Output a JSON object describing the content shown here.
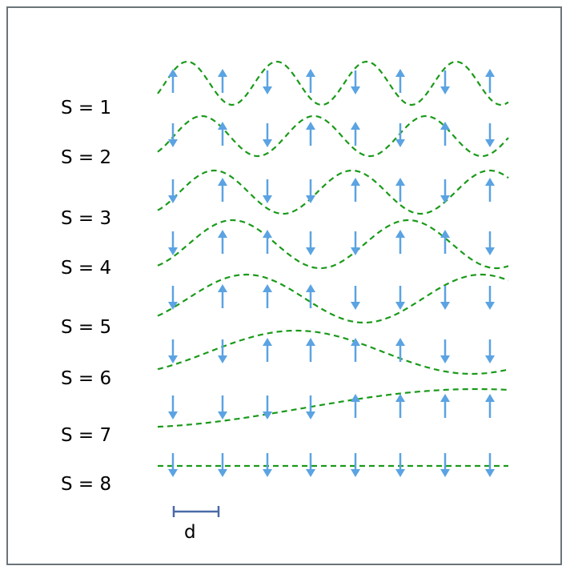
{
  "diagram": {
    "spacing_label": "d",
    "colors": {
      "wave": "#1a9a1a",
      "arrow": "#5ba3e2",
      "scale_bar": "#4a6aa8",
      "frame": "#6b7378"
    },
    "rows": [
      {
        "label": "S = 1",
        "spins": [
          "up",
          "up",
          "down",
          "up",
          "down",
          "up",
          "down",
          "up"
        ]
      },
      {
        "label": "S = 2",
        "spins": [
          "down",
          "up",
          "down",
          "up",
          "up",
          "down",
          "up",
          "down"
        ]
      },
      {
        "label": "S = 3",
        "spins": [
          "down",
          "up",
          "down",
          "down",
          "up",
          "up",
          "down",
          "up"
        ]
      },
      {
        "label": "S = 4",
        "spins": [
          "down",
          "up",
          "up",
          "down",
          "down",
          "up",
          "up",
          "down"
        ]
      },
      {
        "label": "S = 5",
        "spins": [
          "down",
          "up",
          "up",
          "up",
          "down",
          "down",
          "down",
          "down"
        ]
      },
      {
        "label": "S = 6",
        "spins": [
          "down",
          "down",
          "up",
          "up",
          "up",
          "up",
          "down",
          "down"
        ]
      },
      {
        "label": "S = 7",
        "spins": [
          "down",
          "down",
          "down",
          "down",
          "up",
          "up",
          "up",
          "up"
        ]
      },
      {
        "label": "S = 8",
        "spins": [
          "down",
          "down",
          "down",
          "down",
          "down",
          "down",
          "down",
          "down"
        ]
      }
    ]
  }
}
